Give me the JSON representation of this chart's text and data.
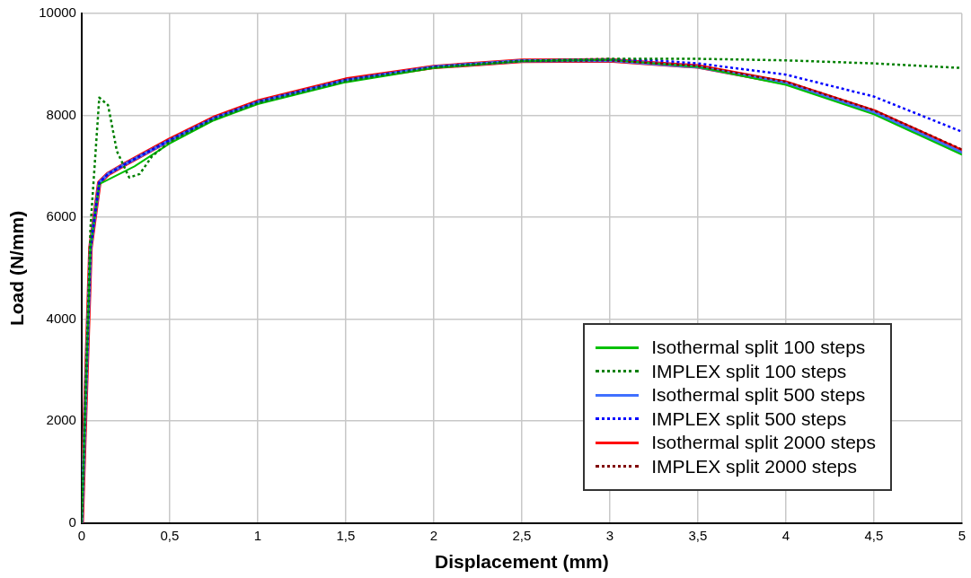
{
  "chart_data": {
    "type": "line",
    "xlabel": "Displacement (mm)",
    "ylabel": "Load (N/mm)",
    "xlim": [
      0,
      5
    ],
    "ylim": [
      0,
      10000
    ],
    "xticks": [
      0,
      {
        "value": 0.5,
        "label": "0,5"
      },
      1,
      {
        "value": 1.5,
        "label": "1,5"
      },
      2,
      {
        "value": 2.5,
        "label": "2,5"
      },
      3,
      {
        "value": 3.5,
        "label": "3,5"
      },
      4,
      {
        "value": 4.5,
        "label": "4,5"
      },
      5
    ],
    "yticks": [
      0,
      2000,
      4000,
      6000,
      8000,
      10000
    ],
    "grid": true,
    "legend": "bottom right",
    "marker": "none",
    "series": [
      {
        "name": "Isothermal split 100 steps",
        "color": "#00c000",
        "line_style": "solid",
        "x": [
          0,
          0.05,
          0.1,
          0.3,
          0.5,
          0.75,
          1,
          1.5,
          2,
          2.5,
          3,
          3.5,
          4,
          4.5,
          5
        ],
        "values": [
          0,
          5400,
          6650,
          7000,
          7450,
          7900,
          8220,
          8650,
          8930,
          9060,
          9090,
          8950,
          8600,
          8020,
          7230
        ]
      },
      {
        "name": "IMPLEX split 100 steps",
        "color": "#008000",
        "line_style": "dotted",
        "x": [
          0,
          0.05,
          0.1,
          0.15,
          0.2,
          0.27,
          0.33,
          0.4,
          0.5,
          0.75,
          1,
          1.5,
          2,
          2.5,
          3,
          3.5,
          4,
          4.5,
          5
        ],
        "values": [
          0,
          5800,
          8350,
          8200,
          7300,
          6780,
          6850,
          7200,
          7480,
          7920,
          8240,
          8670,
          8940,
          9070,
          9110,
          9110,
          9080,
          9020,
          8930
        ]
      },
      {
        "name": "Isothermal split 500 steps",
        "color": "#4070ff",
        "line_style": "solid",
        "x": [
          0,
          0.05,
          0.1,
          0.15,
          0.25,
          0.5,
          0.75,
          1,
          1.5,
          2,
          2.5,
          3,
          3.5,
          4,
          4.5,
          5
        ],
        "values": [
          0,
          5400,
          6680,
          6850,
          7050,
          7510,
          7940,
          8260,
          8690,
          8950,
          9070,
          9080,
          8950,
          8630,
          8060,
          7270
        ]
      },
      {
        "name": "IMPLEX split 500 steps",
        "color": "#0000ff",
        "line_style": "dotted",
        "x": [
          0,
          0.05,
          0.1,
          0.15,
          0.25,
          0.5,
          0.75,
          1,
          1.5,
          2,
          2.5,
          3,
          3.25,
          3.5,
          4,
          4.5,
          5
        ],
        "values": [
          0,
          5400,
          6680,
          6850,
          7050,
          7510,
          7940,
          8260,
          8690,
          8950,
          9070,
          9100,
          9080,
          9020,
          8800,
          8370,
          7680
        ]
      },
      {
        "name": "Isothermal split 2000 steps",
        "color": "#ff0000",
        "line_style": "solid",
        "x": [
          0,
          0.05,
          0.1,
          0.15,
          0.25,
          0.5,
          0.75,
          1,
          1.5,
          2,
          2.5,
          3,
          3.5,
          4,
          4.5,
          5
        ],
        "values": [
          0,
          5400,
          6680,
          6850,
          7050,
          7520,
          7950,
          8270,
          8700,
          8950,
          9070,
          9080,
          8960,
          8640,
          8080,
          7300
        ]
      },
      {
        "name": "IMPLEX split 2000 steps",
        "color": "#800000",
        "line_style": "dotted",
        "x": [
          0,
          0.05,
          0.1,
          0.15,
          0.25,
          0.5,
          0.75,
          1,
          1.5,
          2,
          2.5,
          3,
          3.5,
          4,
          4.5,
          5
        ],
        "values": [
          0,
          5400,
          6680,
          6850,
          7050,
          7520,
          7950,
          8270,
          8700,
          8950,
          9070,
          9080,
          8970,
          8660,
          8100,
          7330
        ]
      }
    ]
  }
}
